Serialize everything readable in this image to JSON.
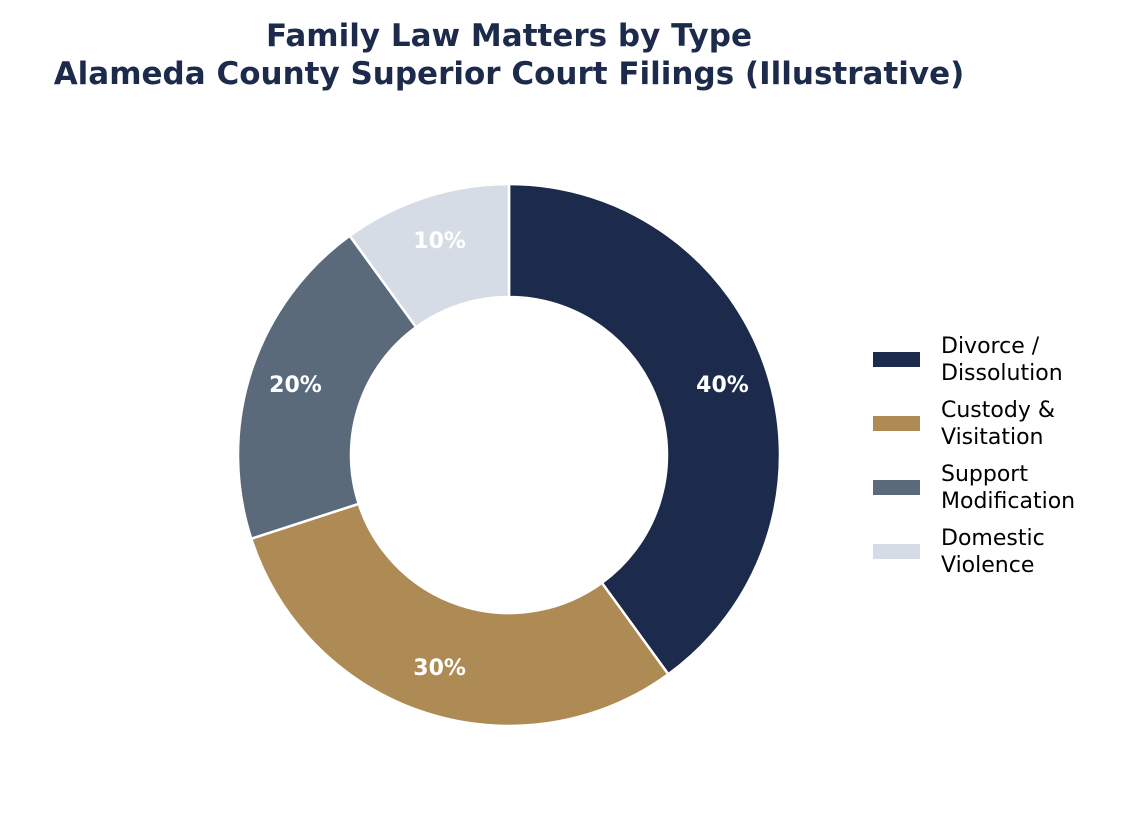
{
  "chart_data": {
    "type": "pie",
    "variant": "donut",
    "title": "Family Law Matters by Type",
    "subtitle": "Alameda County Superior Court Filings (Illustrative)",
    "title_color": "#1c2a4b",
    "label_color": "#ffffff",
    "start": "top",
    "direction": "clockwise",
    "legend_position": "right",
    "slices": [
      {
        "label": "Divorce / Dissolution",
        "legend_lines": [
          "Divorce /",
          "Dissolution"
        ],
        "value": 40,
        "display": "40%",
        "color": "#1c2a4b"
      },
      {
        "label": "Custody & Visitation",
        "legend_lines": [
          "Custody &",
          "Visitation"
        ],
        "value": 30,
        "display": "30%",
        "color": "#ae8b55"
      },
      {
        "label": "Support Modification",
        "legend_lines": [
          "Support",
          "Modification"
        ],
        "value": 20,
        "display": "20%",
        "color": "#5a6a7b"
      },
      {
        "label": "Domestic Violence",
        "legend_lines": [
          "Domestic",
          "Violence"
        ],
        "value": 10,
        "display": "10%",
        "color": "#d6dce6"
      }
    ]
  }
}
